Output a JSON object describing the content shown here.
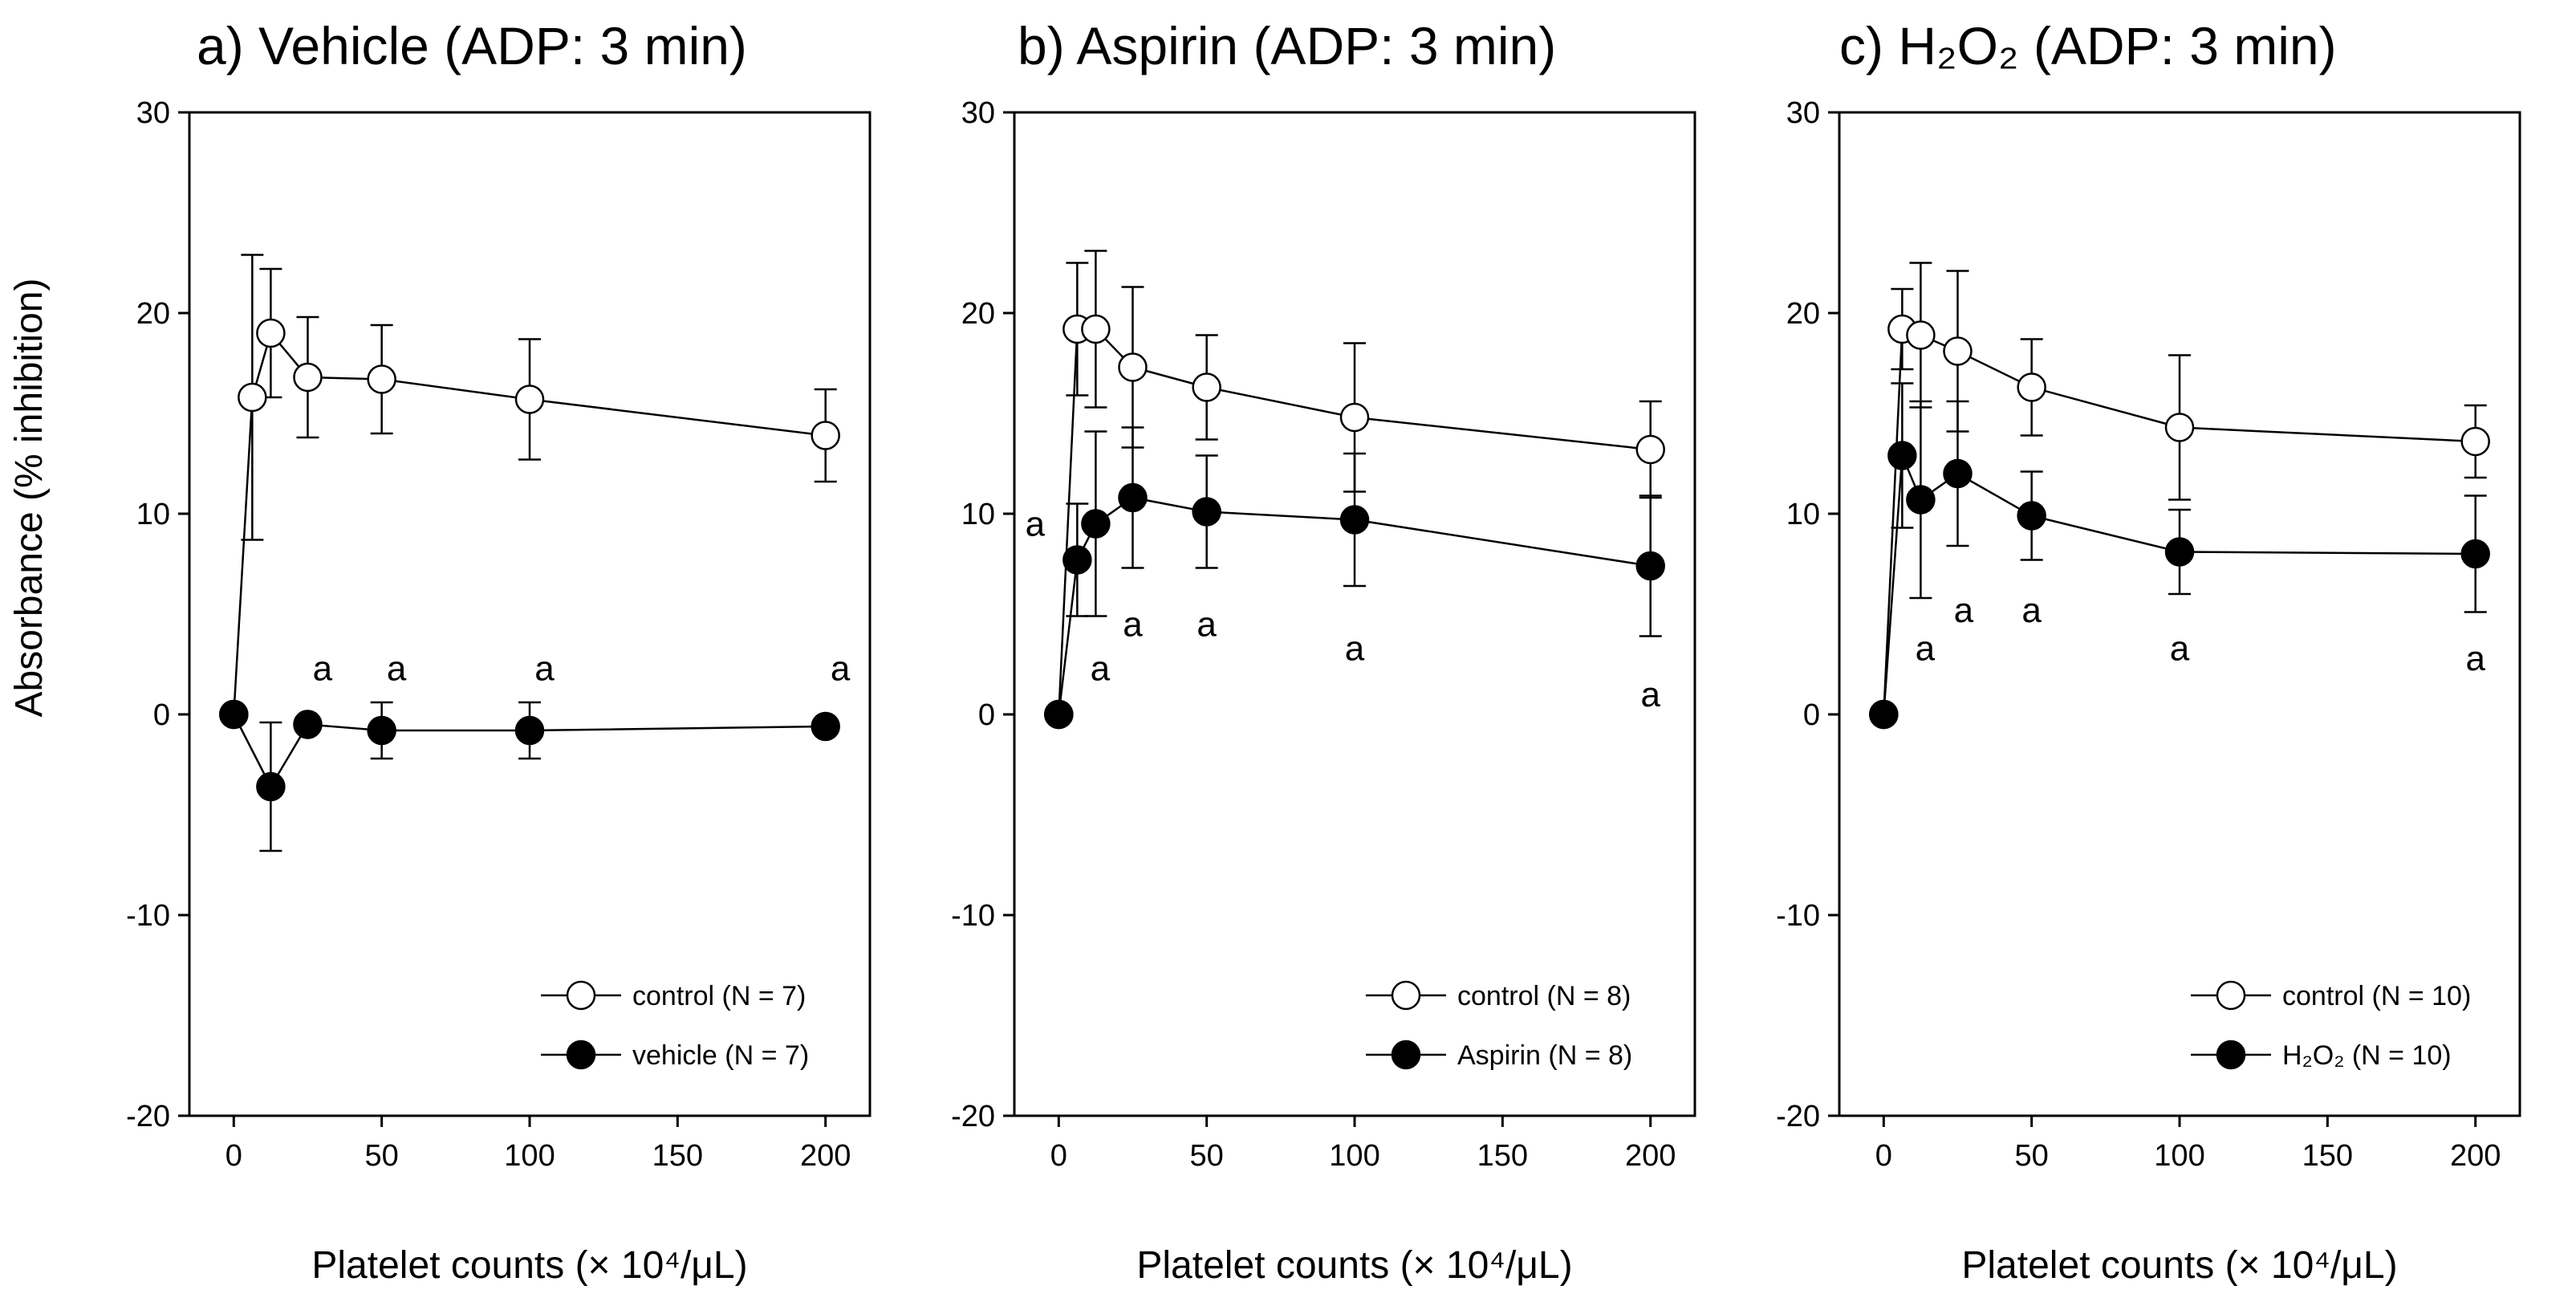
{
  "chart_data": [
    {
      "type": "line",
      "title": "a) Vehicle (ADP: 3 min)",
      "xlabel": "Platelet counts (× 10⁴/μL)",
      "ylabel": "Absorbance (% inhibition)",
      "xlim": [
        -15,
        215
      ],
      "ylim": [
        -20,
        30
      ],
      "xticks": [
        0,
        50,
        100,
        150,
        200
      ],
      "yticks": [
        -20,
        -10,
        0,
        10,
        20,
        30
      ],
      "legend_position": "bottom-right",
      "series": [
        {
          "name": "control (N = 7)",
          "marker": "open-circle",
          "x": [
            0,
            6.25,
            12.5,
            25,
            50,
            100,
            200
          ],
          "y": [
            0,
            15.8,
            19.0,
            16.8,
            16.7,
            15.7,
            13.9
          ],
          "err": [
            0,
            7.1,
            3.2,
            3.0,
            2.7,
            3.0,
            2.3
          ]
        },
        {
          "name": "vehicle (N = 7)",
          "marker": "filled-circle",
          "x": [
            0,
            12.5,
            25,
            50,
            100,
            200
          ],
          "y": [
            0,
            -3.6,
            -0.5,
            -0.8,
            -0.8,
            -0.6
          ],
          "err": [
            0,
            3.2,
            0,
            1.4,
            1.4,
            0
          ]
        }
      ],
      "annotations": [
        {
          "x": 30,
          "y": 2.3,
          "text": "a"
        },
        {
          "x": 55,
          "y": 2.3,
          "text": "a"
        },
        {
          "x": 105,
          "y": 2.3,
          "text": "a"
        },
        {
          "x": 205,
          "y": 2.3,
          "text": "a"
        }
      ]
    },
    {
      "type": "line",
      "title": "b) Aspirin (ADP: 3 min)",
      "xlabel": "Platelet counts (× 10⁴/μL)",
      "ylabel": "",
      "xlim": [
        -15,
        215
      ],
      "ylim": [
        -20,
        30
      ],
      "xticks": [
        0,
        50,
        100,
        150,
        200
      ],
      "yticks": [
        -20,
        -10,
        0,
        10,
        20,
        30
      ],
      "legend_position": "bottom-right",
      "series": [
        {
          "name": "control (N = 8)",
          "marker": "open-circle",
          "x": [
            0,
            6.25,
            12.5,
            25,
            50,
            100,
            200
          ],
          "y": [
            0,
            19.2,
            19.2,
            17.3,
            16.3,
            14.8,
            13.2
          ],
          "err": [
            0,
            3.3,
            3.9,
            4.0,
            2.6,
            3.7,
            2.4
          ]
        },
        {
          "name": "Aspirin (N = 8)",
          "marker": "filled-circle",
          "x": [
            0,
            6.25,
            12.5,
            25,
            50,
            100,
            200
          ],
          "y": [
            0,
            7.7,
            9.5,
            10.8,
            10.1,
            9.7,
            7.4
          ],
          "err": [
            0,
            2.8,
            4.6,
            3.5,
            2.8,
            3.3,
            3.5
          ]
        }
      ],
      "annotations": [
        {
          "x": -8,
          "y": 9.5,
          "text": "a"
        },
        {
          "x": 14,
          "y": 2.3,
          "text": "a"
        },
        {
          "x": 25,
          "y": 4.5,
          "text": "a"
        },
        {
          "x": 50,
          "y": 4.5,
          "text": "a"
        },
        {
          "x": 100,
          "y": 3.3,
          "text": "a"
        },
        {
          "x": 200,
          "y": 1.0,
          "text": "a"
        }
      ]
    },
    {
      "type": "line",
      "title": "c) H₂O₂ (ADP: 3 min)",
      "xlabel": "Platelet counts (× 10⁴/μL)",
      "ylabel": "",
      "xlim": [
        -15,
        215
      ],
      "ylim": [
        -20,
        30
      ],
      "xticks": [
        0,
        50,
        100,
        150,
        200
      ],
      "yticks": [
        -20,
        -10,
        0,
        10,
        20,
        30
      ],
      "legend_position": "bottom-right",
      "series": [
        {
          "name": "control (N = 10)",
          "marker": "open-circle",
          "x": [
            0,
            6.25,
            12.5,
            25,
            50,
            100,
            200
          ],
          "y": [
            0,
            19.2,
            18.9,
            18.1,
            16.3,
            14.3,
            13.6
          ],
          "err": [
            0,
            2.0,
            3.6,
            4.0,
            2.4,
            3.6,
            1.8
          ]
        },
        {
          "name": "H₂O₂ (N = 10)",
          "marker": "filled-circle",
          "x": [
            0,
            6.25,
            12.5,
            25,
            50,
            100,
            200
          ],
          "y": [
            0,
            12.9,
            10.7,
            12.0,
            9.9,
            8.1,
            8.0
          ],
          "err": [
            0,
            3.6,
            4.9,
            3.6,
            2.2,
            2.1,
            2.9
          ]
        }
      ],
      "annotations": [
        {
          "x": 14,
          "y": 3.3,
          "text": "a"
        },
        {
          "x": 27,
          "y": 5.2,
          "text": "a"
        },
        {
          "x": 50,
          "y": 5.2,
          "text": "a"
        },
        {
          "x": 100,
          "y": 3.3,
          "text": "a"
        },
        {
          "x": 200,
          "y": 2.8,
          "text": "a"
        }
      ]
    }
  ]
}
